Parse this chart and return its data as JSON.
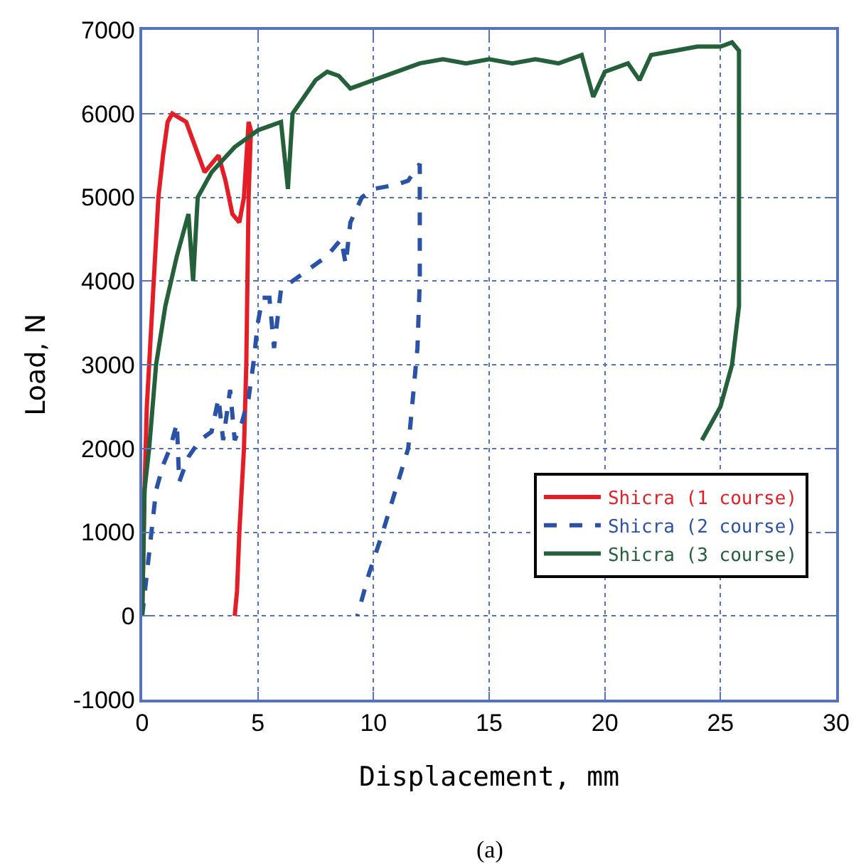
{
  "chart_data": {
    "type": "line",
    "xlabel": "Displacement, mm",
    "ylabel": "Load, N",
    "xlim": [
      0,
      30
    ],
    "xticks": [
      0,
      5,
      10,
      15,
      20,
      25,
      30
    ],
    "ylim": [
      -1000,
      7000
    ],
    "yticks": [
      -1000,
      0,
      1000,
      2000,
      3000,
      4000,
      5000,
      6000,
      7000
    ],
    "grid": true,
    "legend": "right",
    "marker": "none",
    "annotations": [
      "(a)"
    ],
    "series": [
      {
        "name": "Shicra (1 course)",
        "color": "#e31e26",
        "line_style": "solid",
        "x": [
          0,
          0.1,
          0.2,
          0.3,
          0.5,
          0.7,
          0.9,
          1.1,
          1.3,
          1.6,
          1.9,
          2.3,
          2.7,
          3.0,
          3.3,
          3.6,
          3.9,
          4.2,
          4.4,
          4.6,
          4.7,
          4.6,
          4.5,
          4.4,
          4.2,
          4.1,
          4.0
        ],
        "values": [
          0,
          1500,
          2500,
          3000,
          4000,
          5000,
          5500,
          5900,
          6000,
          5950,
          5900,
          5600,
          5300,
          5400,
          5500,
          5200,
          4800,
          4700,
          5000,
          5900,
          5800,
          5000,
          3000,
          2000,
          1000,
          300,
          0
        ]
      },
      {
        "name": "Shicra (2 course)",
        "color": "#2a52a6",
        "line_style": "dashed",
        "x": [
          0,
          0.2,
          0.4,
          0.6,
          0.9,
          1.2,
          1.5,
          1.6,
          2.0,
          2.5,
          3.0,
          3.3,
          3.5,
          3.8,
          4.0,
          4.3,
          4.6,
          4.8,
          5.0,
          5.2,
          5.5,
          5.7,
          6.0,
          7,
          8,
          8.6,
          8.8,
          9,
          9.5,
          10,
          11,
          11.5,
          12,
          12,
          11.9,
          11.5,
          10.4,
          9.8,
          9.3
        ],
        "values": [
          0,
          500,
          1000,
          1500,
          1800,
          2000,
          2300,
          1600,
          1900,
          2100,
          2200,
          2600,
          2100,
          2700,
          2100,
          2300,
          2600,
          3000,
          3500,
          3800,
          3800,
          3200,
          3900,
          4100,
          4300,
          4500,
          4200,
          4700,
          5000,
          5100,
          5150,
          5200,
          5400,
          4000,
          3200,
          2000,
          1000,
          500,
          0
        ]
      },
      {
        "name": "Shicra (3 course)",
        "color": "#24603a",
        "line_style": "solid",
        "x": [
          0,
          0.1,
          0.3,
          0.6,
          1,
          1.5,
          2,
          2.2,
          2.4,
          3,
          3.5,
          4,
          4.5,
          5,
          5.5,
          6,
          6.3,
          6.5,
          7,
          7.5,
          8,
          8.5,
          9,
          10,
          11,
          12,
          13,
          14,
          15,
          16,
          17,
          18,
          19,
          19.5,
          20,
          21,
          21.5,
          22,
          23,
          24,
          25,
          25.5,
          25.8,
          25.8,
          25.5,
          25,
          24.2
        ],
        "values": [
          0,
          1500,
          2000,
          3000,
          3700,
          4300,
          4800,
          4000,
          5000,
          5300,
          5450,
          5600,
          5700,
          5800,
          5850,
          5900,
          5100,
          6000,
          6200,
          6400,
          6500,
          6450,
          6300,
          6400,
          6500,
          6600,
          6650,
          6600,
          6650,
          6600,
          6650,
          6600,
          6700,
          6200,
          6500,
          6600,
          6400,
          6700,
          6750,
          6800,
          6800,
          6850,
          6750,
          3700,
          3000,
          2500,
          2100
        ]
      }
    ]
  }
}
